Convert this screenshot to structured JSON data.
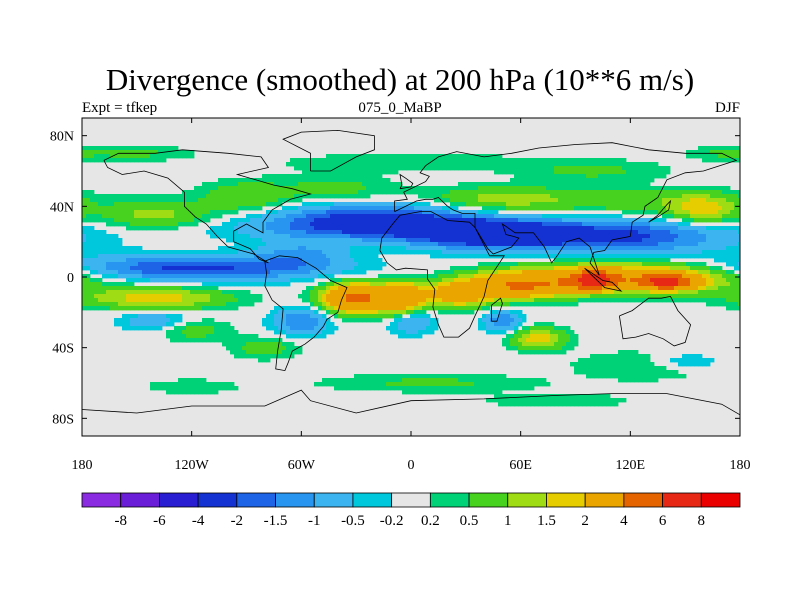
{
  "chart_data": {
    "type": "heatmap",
    "title": "Divergence (smoothed) at 200 hPa (10**6 m/s)",
    "subtitle_left": "Expt = tfkep",
    "subtitle_center": "075_0_MaBP",
    "subtitle_right": "DJF",
    "x_ticks": [
      "180",
      "120W",
      "60W",
      "0",
      "60E",
      "120E",
      "180"
    ],
    "x_values": [
      -180,
      -120,
      -60,
      0,
      60,
      120,
      180
    ],
    "y_ticks": [
      "80N",
      "40N",
      "0",
      "40S",
      "80S"
    ],
    "y_values": [
      80,
      40,
      0,
      -40,
      -80
    ],
    "xlim": [
      -180,
      180
    ],
    "ylim": [
      -90,
      90
    ],
    "colorbar_labels": [
      "-8",
      "-6",
      "-4",
      "-2",
      "-1.5",
      "-1",
      "-0.5",
      "-0.2",
      "0.2",
      "0.5",
      "1",
      "1.5",
      "2",
      "4",
      "6",
      "8"
    ],
    "colorbar_colors": [
      "#8a2be2",
      "#6a1ed8",
      "#2a1ed2",
      "#1432d2",
      "#1e64e6",
      "#2896f0",
      "#3cb4f0",
      "#00c8dc",
      "#e6e6e6",
      "#00d278",
      "#46d21e",
      "#a0dc14",
      "#e6cd00",
      "#eba500",
      "#e66400",
      "#e62814",
      "#eb0000"
    ],
    "field_levels": [
      -8,
      -6,
      -4,
      -2,
      -1.5,
      -1,
      -0.5,
      -0.2,
      0.2,
      0.5,
      1,
      1.5,
      2,
      4,
      6,
      8
    ],
    "features": [
      {
        "lon": -120,
        "lat": 5,
        "rlon": 70,
        "rlat": 7,
        "value": -2.2
      },
      {
        "lon": -20,
        "lat": 32,
        "rlon": 55,
        "rlat": 9,
        "value": -2.5
      },
      {
        "lon": 40,
        "lat": 24,
        "rlon": 40,
        "rlat": 8,
        "value": -2.4
      },
      {
        "lon": 110,
        "lat": 22,
        "rlon": 60,
        "rlat": 9,
        "value": -2.0
      },
      {
        "lon": 20,
        "lat": 27,
        "rlon": 120,
        "rlat": 6,
        "value": -0.8
      },
      {
        "lon": -60,
        "lat": 13,
        "rlon": 25,
        "rlat": 8,
        "value": -1.0
      },
      {
        "lon": -140,
        "lat": 35,
        "rlon": 30,
        "rlat": 8,
        "value": 1.2
      },
      {
        "lon": -90,
        "lat": 45,
        "rlon": 25,
        "rlat": 9,
        "value": 1.0
      },
      {
        "lon": -40,
        "lat": 50,
        "rlon": 30,
        "rlat": 8,
        "value": 0.7
      },
      {
        "lon": 50,
        "lat": 44,
        "rlon": 40,
        "rlat": 7,
        "value": 1.3
      },
      {
        "lon": 130,
        "lat": 43,
        "rlon": 50,
        "rlat": 7,
        "value": 0.8
      },
      {
        "lon": 160,
        "lat": 38,
        "rlon": 18,
        "rlat": 8,
        "value": 1.6
      },
      {
        "lon": 0,
        "lat": 65,
        "rlon": 70,
        "rlat": 5,
        "value": 0.5
      },
      {
        "lon": 100,
        "lat": 60,
        "rlon": 40,
        "rlat": 6,
        "value": 0.6
      },
      {
        "lon": -140,
        "lat": -12,
        "rlon": 40,
        "rlat": 6,
        "value": 1.8
      },
      {
        "lon": -30,
        "lat": -12,
        "rlon": 18,
        "rlat": 8,
        "value": 4.5
      },
      {
        "lon": -5,
        "lat": -12,
        "rlon": 12,
        "rlat": 9,
        "value": 3.0
      },
      {
        "lon": 25,
        "lat": -10,
        "rlon": 20,
        "rlat": 7,
        "value": 2.5
      },
      {
        "lon": 60,
        "lat": -5,
        "rlon": 30,
        "rlat": 7,
        "value": 3.5
      },
      {
        "lon": 120,
        "lat": 0,
        "rlon": 60,
        "rlat": 8,
        "value": 3.0
      },
      {
        "lon": 100,
        "lat": -2,
        "rlon": 12,
        "rlat": 5,
        "value": 5.0
      },
      {
        "lon": 140,
        "lat": -3,
        "rlon": 15,
        "rlat": 4,
        "value": 5.2
      },
      {
        "lon": 70,
        "lat": -35,
        "rlon": 15,
        "rlat": 6,
        "value": 1.8
      },
      {
        "lon": -120,
        "lat": -30,
        "rlon": 20,
        "rlat": 6,
        "value": 0.8
      },
      {
        "lon": -140,
        "lat": -25,
        "rlon": 18,
        "rlat": 6,
        "value": -1.0
      },
      {
        "lon": -60,
        "lat": -25,
        "rlon": 15,
        "rlat": 8,
        "value": -1.5
      },
      {
        "lon": 0,
        "lat": -25,
        "rlon": 12,
        "rlat": 7,
        "value": -1.2
      },
      {
        "lon": 50,
        "lat": -25,
        "rlon": 10,
        "rlat": 6,
        "value": -1.5
      },
      {
        "lon": -80,
        "lat": -40,
        "rlon": 18,
        "rlat": 6,
        "value": 0.8
      },
      {
        "lon": 130,
        "lat": -50,
        "rlon": 40,
        "rlat": 8,
        "value": 0.6
      },
      {
        "lon": 150,
        "lat": -48,
        "rlon": 20,
        "rlat": 5,
        "value": -0.8
      },
      {
        "lon": 10,
        "lat": -60,
        "rlon": 60,
        "rlat": 5,
        "value": 0.6
      },
      {
        "lon": -120,
        "lat": -62,
        "rlon": 25,
        "rlat": 4,
        "value": 0.5
      },
      {
        "lon": 80,
        "lat": -70,
        "rlon": 40,
        "rlat": 4,
        "value": 0.5
      },
      {
        "lon": -150,
        "lat": 70,
        "rlon": 30,
        "rlat": 4,
        "value": 0.6
      },
      {
        "lon": 170,
        "lat": 70,
        "rlon": 20,
        "rlat": 4,
        "value": 0.5
      }
    ]
  }
}
